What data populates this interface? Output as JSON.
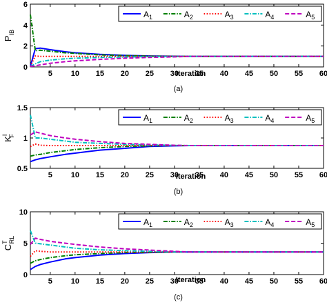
{
  "chart_data": [
    {
      "type": "line",
      "panel_label": "(a)",
      "xlabel": "Iteration",
      "ylabel": "P",
      "ylabel_sub": "IB",
      "ylabel_sup": "",
      "xlim": [
        1,
        60
      ],
      "ylim": [
        0,
        6
      ],
      "xticks": [
        5,
        10,
        15,
        20,
        25,
        30,
        35,
        40,
        45,
        50,
        55,
        60
      ],
      "yticks": [
        0,
        2,
        4,
        6
      ],
      "grid": false,
      "legend_position": "top-right",
      "series": [
        {
          "name": "A",
          "sub": "1",
          "color": "#0000ff",
          "dash": "solid",
          "x": [
            1,
            2,
            3,
            5,
            8,
            10,
            15,
            20,
            25,
            30,
            33,
            35,
            60
          ],
          "y": [
            0.05,
            1.75,
            1.8,
            1.65,
            1.45,
            1.35,
            1.2,
            1.1,
            1.05,
            1.02,
            1.0,
            1.0,
            1.0
          ]
        },
        {
          "name": "A",
          "sub": "2",
          "color": "#007f00",
          "dash": "dashdot",
          "x": [
            1,
            2,
            3,
            5,
            8,
            10,
            15,
            20,
            25,
            30,
            33,
            35,
            60
          ],
          "y": [
            5.0,
            1.55,
            1.6,
            1.5,
            1.35,
            1.3,
            1.15,
            1.08,
            1.03,
            1.01,
            1.0,
            1.0,
            1.0
          ]
        },
        {
          "name": "A",
          "sub": "3",
          "color": "#ff0000",
          "dash": "dotted",
          "x": [
            1,
            2,
            3,
            5,
            10,
            20,
            33,
            60
          ],
          "y": [
            0.05,
            1.05,
            1.0,
            1.0,
            1.0,
            1.0,
            1.0,
            1.0
          ]
        },
        {
          "name": "A",
          "sub": "4",
          "color": "#00bfbf",
          "dash": "dashdot",
          "x": [
            1,
            2,
            3,
            5,
            8,
            10,
            15,
            20,
            25,
            30,
            33,
            60
          ],
          "y": [
            0.05,
            0.3,
            0.5,
            0.65,
            0.78,
            0.83,
            0.9,
            0.95,
            0.98,
            0.99,
            1.0,
            1.0
          ]
        },
        {
          "name": "A",
          "sub": "5",
          "color": "#bf00bf",
          "dash": "dashed",
          "x": [
            1,
            2,
            3,
            5,
            8,
            10,
            15,
            20,
            25,
            30,
            33,
            60
          ],
          "y": [
            0.05,
            0.1,
            0.2,
            0.35,
            0.5,
            0.58,
            0.72,
            0.83,
            0.91,
            0.96,
            1.0,
            1.0
          ]
        }
      ]
    },
    {
      "type": "line",
      "panel_label": "(b)",
      "xlabel": "Iteration",
      "ylabel": "K",
      "ylabel_sub": "F",
      "ylabel_sup": "I",
      "xlim": [
        1,
        60
      ],
      "ylim": [
        0.5,
        1.5
      ],
      "xticks": [
        5,
        10,
        15,
        20,
        25,
        30,
        35,
        40,
        45,
        50,
        55,
        60
      ],
      "yticks": [
        0.5,
        1,
        1.5
      ],
      "grid": false,
      "legend_position": "top-right",
      "series": [
        {
          "name": "A",
          "sub": "1",
          "color": "#0000ff",
          "dash": "solid",
          "x": [
            1,
            2,
            3,
            5,
            8,
            10,
            15,
            20,
            25,
            30,
            33,
            60
          ],
          "y": [
            0.61,
            0.64,
            0.66,
            0.69,
            0.73,
            0.75,
            0.8,
            0.83,
            0.86,
            0.87,
            0.875,
            0.875
          ]
        },
        {
          "name": "A",
          "sub": "2",
          "color": "#007f00",
          "dash": "dashdot",
          "x": [
            1,
            2,
            3,
            5,
            8,
            10,
            15,
            20,
            25,
            30,
            33,
            60
          ],
          "y": [
            0.7,
            0.72,
            0.73,
            0.76,
            0.79,
            0.81,
            0.84,
            0.86,
            0.87,
            0.875,
            0.875,
            0.875
          ]
        },
        {
          "name": "A",
          "sub": "3",
          "color": "#ff0000",
          "dash": "dotted",
          "x": [
            1,
            2,
            3,
            5,
            10,
            20,
            33,
            60
          ],
          "y": [
            0.86,
            0.9,
            0.88,
            0.875,
            0.875,
            0.875,
            0.875,
            0.875
          ]
        },
        {
          "name": "A",
          "sub": "4",
          "color": "#00bfbf",
          "dash": "dashdot",
          "x": [
            1,
            2,
            3,
            5,
            8,
            10,
            15,
            20,
            25,
            30,
            33,
            60
          ],
          "y": [
            1.38,
            1.0,
            1.0,
            0.98,
            0.95,
            0.93,
            0.91,
            0.895,
            0.885,
            0.878,
            0.875,
            0.875
          ]
        },
        {
          "name": "A",
          "sub": "5",
          "color": "#bf00bf",
          "dash": "dashed",
          "x": [
            1,
            2,
            3,
            5,
            8,
            10,
            15,
            20,
            25,
            30,
            33,
            60
          ],
          "y": [
            1.05,
            1.1,
            1.08,
            1.04,
            1.0,
            0.98,
            0.94,
            0.91,
            0.895,
            0.88,
            0.875,
            0.875
          ]
        }
      ]
    },
    {
      "type": "line",
      "panel_label": "(c)",
      "xlabel": "Iteration",
      "ylabel": "C",
      "ylabel_sub": "RL",
      "ylabel_sup": "T",
      "xlim": [
        1,
        60
      ],
      "ylim": [
        0,
        10
      ],
      "xticks": [
        5,
        10,
        15,
        20,
        25,
        30,
        35,
        40,
        45,
        50,
        55,
        60
      ],
      "yticks": [
        0,
        5,
        10
      ],
      "grid": false,
      "legend_position": "top-right",
      "series": [
        {
          "name": "A",
          "sub": "1",
          "color": "#0000ff",
          "dash": "solid",
          "x": [
            1,
            2,
            3,
            5,
            8,
            10,
            15,
            20,
            25,
            30,
            33,
            60
          ],
          "y": [
            0.8,
            1.3,
            1.6,
            2.0,
            2.5,
            2.7,
            3.1,
            3.35,
            3.5,
            3.58,
            3.6,
            3.6
          ]
        },
        {
          "name": "A",
          "sub": "2",
          "color": "#007f00",
          "dash": "dashdot",
          "x": [
            1,
            2,
            3,
            5,
            8,
            10,
            15,
            20,
            25,
            30,
            33,
            60
          ],
          "y": [
            1.8,
            2.2,
            2.4,
            2.7,
            3.0,
            3.15,
            3.35,
            3.5,
            3.55,
            3.6,
            3.6,
            3.6
          ]
        },
        {
          "name": "A",
          "sub": "3",
          "color": "#ff0000",
          "dash": "dotted",
          "x": [
            1,
            2,
            3,
            5,
            10,
            20,
            33,
            60
          ],
          "y": [
            2.9,
            3.8,
            3.7,
            3.6,
            3.6,
            3.6,
            3.6,
            3.6
          ]
        },
        {
          "name": "A",
          "sub": "4",
          "color": "#00bfbf",
          "dash": "dashdot",
          "x": [
            1,
            2,
            3,
            5,
            8,
            10,
            15,
            20,
            25,
            30,
            33,
            60
          ],
          "y": [
            7.0,
            5.0,
            4.9,
            4.7,
            4.4,
            4.2,
            3.95,
            3.8,
            3.7,
            3.62,
            3.6,
            3.6
          ]
        },
        {
          "name": "A",
          "sub": "5",
          "color": "#bf00bf",
          "dash": "dashed",
          "x": [
            1,
            2,
            3,
            5,
            8,
            10,
            15,
            20,
            25,
            30,
            33,
            60
          ],
          "y": [
            4.8,
            5.8,
            5.6,
            5.3,
            5.0,
            4.8,
            4.4,
            4.1,
            3.9,
            3.7,
            3.6,
            3.6
          ]
        }
      ]
    }
  ]
}
